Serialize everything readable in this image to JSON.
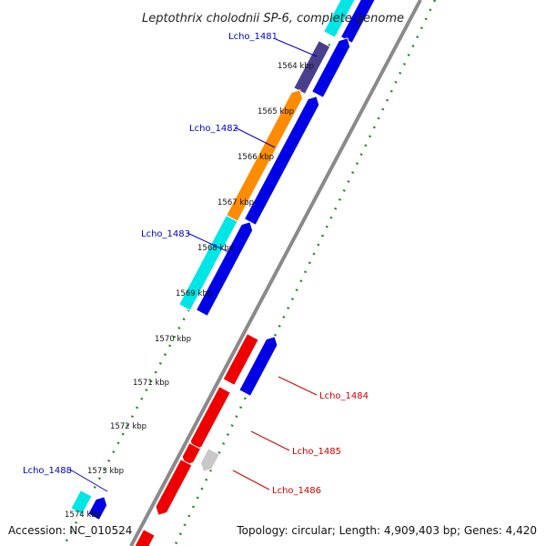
{
  "title": "Leptothrix cholodnii SP-6, complete genome",
  "footer": {
    "accession": "Accession: NC_010524",
    "topology": "Topology: circular; Length: 4,909,403 bp; Genes: 4,420"
  },
  "ticks": [
    "1564 kbp",
    "1565 kbp",
    "1566 kbp",
    "1567 kbp",
    "1568 kbp",
    "1569 kbp",
    "1570 kbp",
    "1571 kbp",
    "1572 kbp",
    "1573 kbp",
    "1574 kbp"
  ],
  "gene_labels": [
    {
      "name": "Lcho_1481",
      "color": "#0000cc"
    },
    {
      "name": "Lcho_1482",
      "color": "#0000cc"
    },
    {
      "name": "Lcho_1483",
      "color": "#0000cc"
    },
    {
      "name": "Lcho_1484",
      "color": "#cc0000"
    },
    {
      "name": "Lcho_1485",
      "color": "#cc0000"
    },
    {
      "name": "Lcho_1486",
      "color": "#cc0000"
    },
    {
      "name": "Lcho_1488",
      "color": "#0000cc"
    }
  ],
  "colors": {
    "backbone": "#8a8a8a",
    "gc_dots": "#228b22",
    "forward_blue": "#0000e6",
    "reverse_red": "#ee0000",
    "orange": "#ff8c00",
    "cyan": "#00e5e5",
    "dark_purple": "#4a3f8f",
    "gray": "#c8c8c8"
  }
}
